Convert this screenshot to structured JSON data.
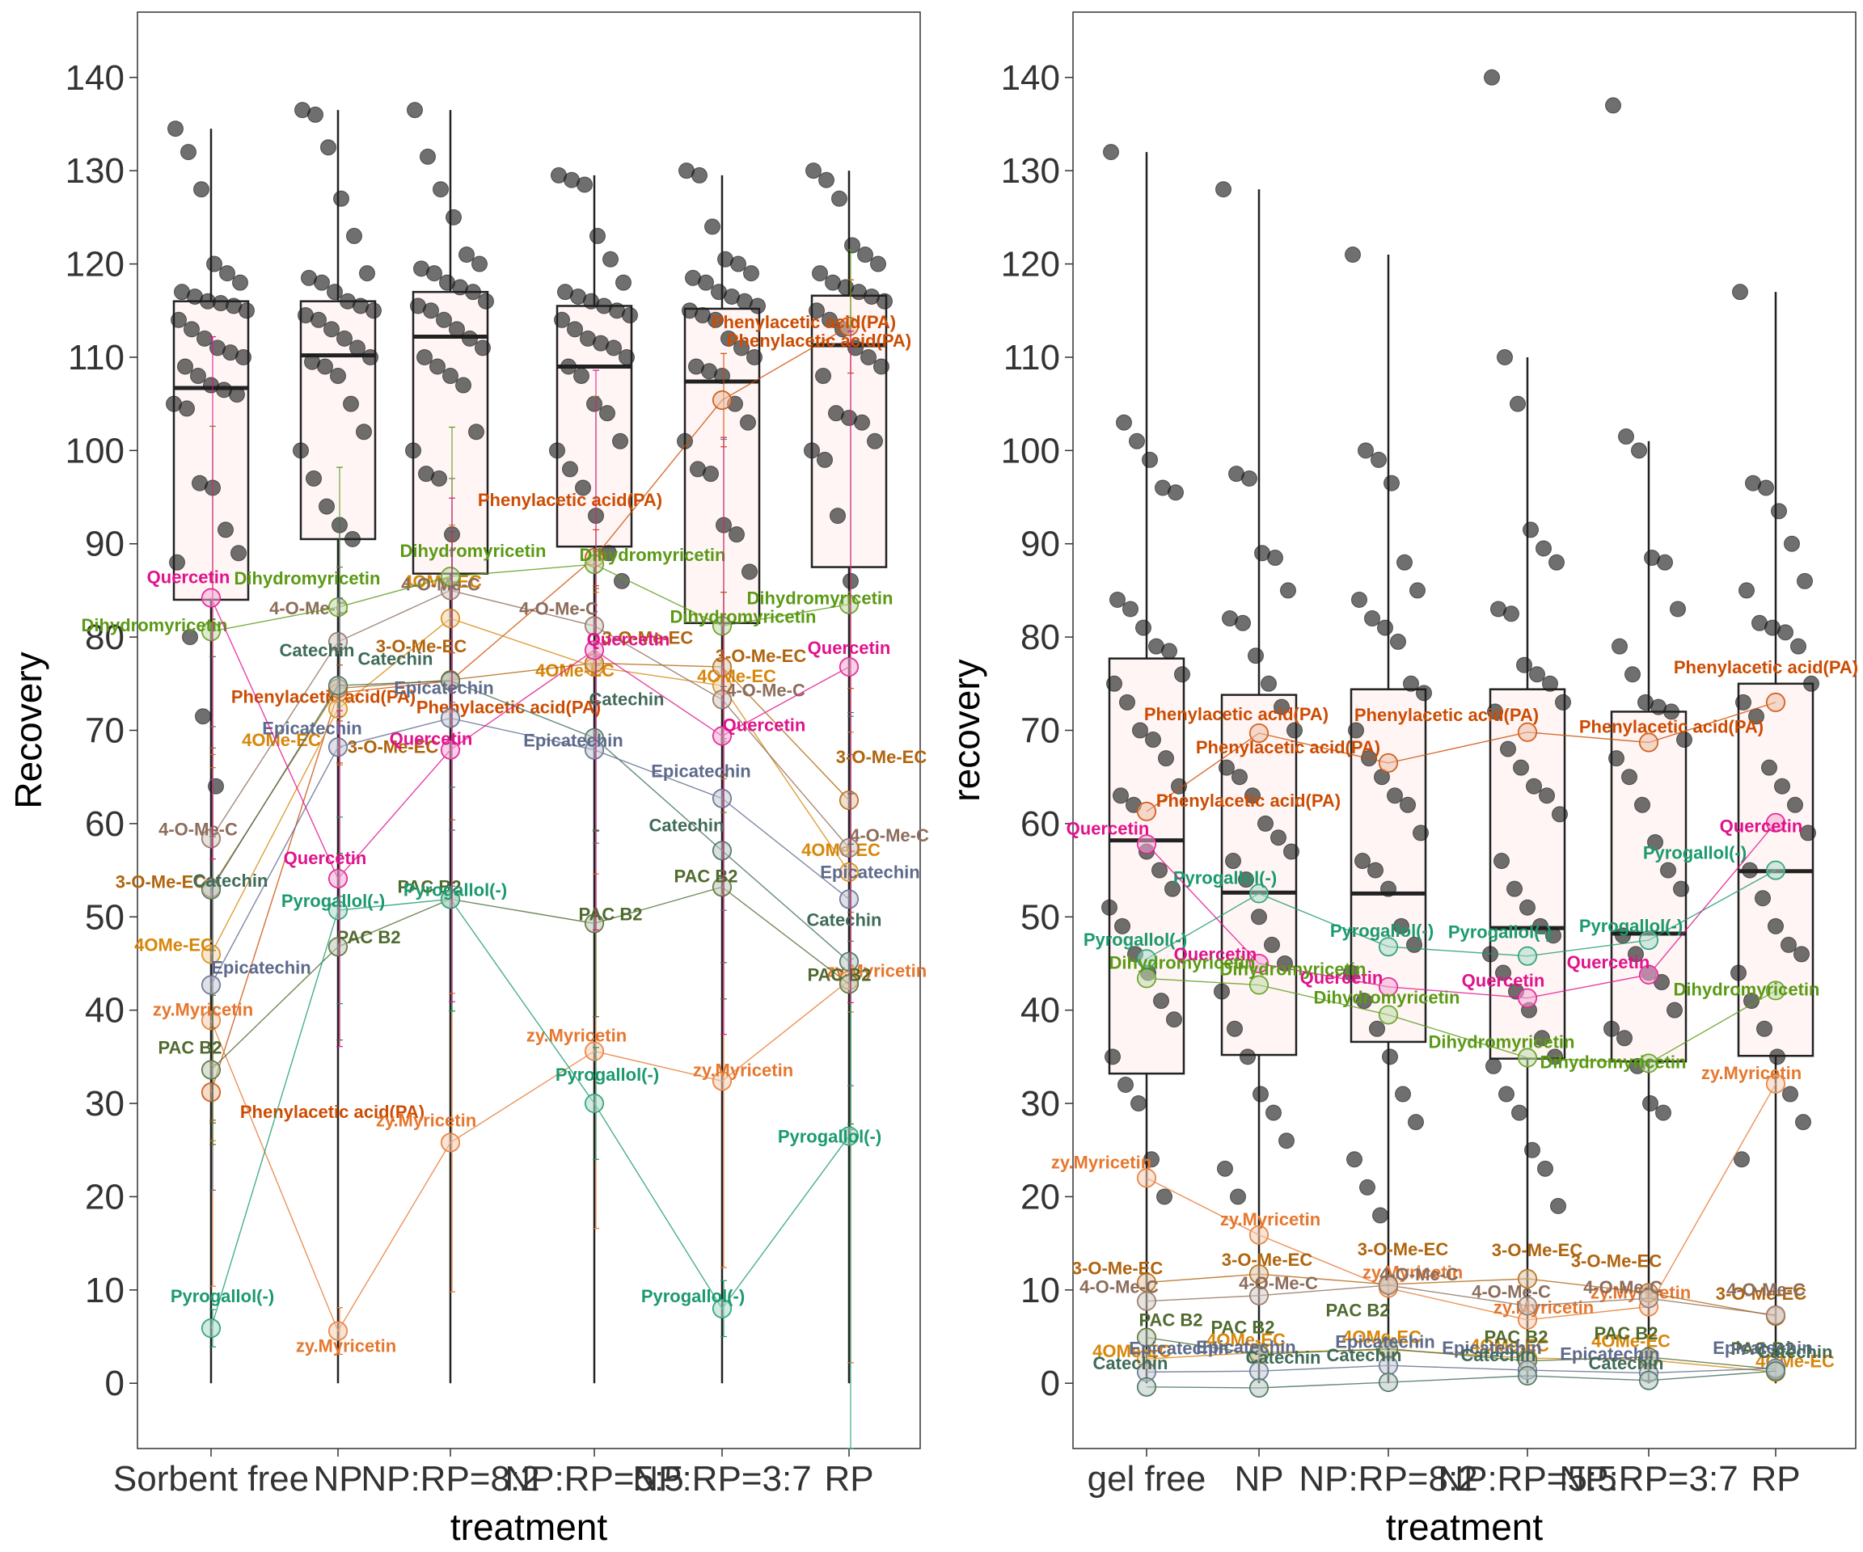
{
  "colors": {
    "Phenylacetic acid(PA)": "#cc4c02",
    "zy.Myricetin": "#e6772e",
    "4OMe-EC": "#d7870a",
    "3-O-Me-EC": "#b0640d",
    "4-O-Me-C": "#8c6d5c",
    "Dihydromyricetin": "#5a9a14",
    "Catechin": "#3f6b58",
    "Epicatechin": "#5e6a8c",
    "PAC B2": "#4f6b2e",
    "Pyrogallol(-)": "#1b9a6e",
    "Quercetin": "#e0138c",
    "box_fill": "#fff5f5",
    "raw_point": "#222222"
  },
  "chart_data": [
    {
      "type": "boxplot",
      "xlabel": "treatment",
      "ylabel": "Recovery",
      "ylim": [
        -7,
        147
      ],
      "yticks": [
        0,
        10,
        20,
        30,
        40,
        50,
        60,
        70,
        80,
        90,
        100,
        110,
        120,
        130,
        140
      ],
      "categories": [
        "Sorbent free",
        "NP",
        "NP:RP=8:2",
        "NP:RP=5:5",
        "NP:RP=3:7",
        "RP"
      ],
      "boxes": [
        {
          "q1": 84,
          "median": 106.7,
          "q3": 116,
          "lo": 0,
          "hi": 134.5
        },
        {
          "q1": 90.5,
          "median": 110.2,
          "q3": 116,
          "lo": 0,
          "hi": 136.5
        },
        {
          "q1": 86.8,
          "median": 112.2,
          "q3": 117,
          "lo": 0,
          "hi": 136.5
        },
        {
          "q1": 89.7,
          "median": 109,
          "q3": 115.5,
          "lo": 0,
          "hi": 129.5
        },
        {
          "q1": 81.5,
          "median": 107.4,
          "q3": 115.2,
          "lo": 0,
          "hi": 129.5
        },
        {
          "q1": 87.5,
          "median": 111.3,
          "q3": 116.6,
          "lo": 0,
          "hi": 130
        }
      ],
      "raw_points": [
        [
          134.5,
          132,
          128,
          120,
          119,
          118,
          117,
          116.5,
          116,
          115.8,
          115.5,
          115,
          114,
          113,
          112,
          111,
          110.5,
          110,
          109,
          108,
          107,
          106.5,
          106,
          105,
          104.5,
          96.5,
          96,
          91.5,
          89,
          88,
          80,
          71.5,
          64
        ],
        [
          136.5,
          136,
          132.5,
          127,
          123,
          119,
          118.5,
          118,
          117,
          116,
          115.5,
          115,
          114.5,
          114,
          113,
          112,
          111,
          110,
          109.5,
          109,
          108,
          105,
          102,
          100,
          97,
          94,
          92,
          90.5
        ],
        [
          136.5,
          131.5,
          128,
          125,
          121,
          120,
          119.5,
          119,
          118,
          117.5,
          117,
          116,
          115.5,
          115,
          114,
          113,
          112,
          111,
          110,
          109,
          108,
          107,
          102,
          100,
          97.5,
          97,
          91
        ],
        [
          129.5,
          129,
          128.5,
          123,
          120.5,
          118,
          117,
          116.5,
          116,
          115.5,
          115,
          114.5,
          114,
          113,
          112,
          111.5,
          111,
          110,
          109,
          108,
          105,
          104,
          101,
          100,
          98,
          96,
          93,
          89,
          86
        ],
        [
          130,
          129.5,
          124,
          120.5,
          120,
          119,
          118.5,
          118,
          117,
          116.5,
          116,
          115.5,
          115,
          114.5,
          114,
          112,
          111,
          110,
          109,
          108.5,
          108,
          105,
          103,
          101,
          98,
          97.5,
          92,
          91,
          87
        ],
        [
          130,
          129,
          127,
          122,
          121,
          120,
          119,
          118,
          117.5,
          117,
          116.5,
          116,
          115,
          114,
          113,
          111,
          110,
          109,
          108,
          104,
          103.5,
          103,
          101,
          100,
          99,
          93,
          86
        ]
      ],
      "series": [
        {
          "name": "Phenylacetic acid(PA)",
          "values": [
            31.2,
            74,
            75.3,
            88.5,
            105.4,
            113.3
          ],
          "err": [
            3,
            3,
            3,
            3,
            5,
            5
          ]
        },
        {
          "name": "zy.Myricetin",
          "values": [
            38.9,
            5.6,
            25.8,
            35.6,
            32.4,
            43.2
          ],
          "err": [
            28.5,
            2.5,
            16,
            19,
            20,
            41
          ]
        },
        {
          "name": "4OMe-EC",
          "values": [
            46,
            72.3,
            82,
            76.8,
            74.8,
            54.8
          ],
          "err": [
            20,
            6,
            10,
            8,
            10,
            15
          ]
        },
        {
          "name": "3-O-Me-EC",
          "values": [
            53.1,
            74.5,
            75.4,
            77.2,
            76.8,
            62.5
          ],
          "err": [
            15,
            8,
            15,
            8,
            8,
            12
          ]
        },
        {
          "name": "4-O-Me-C",
          "values": [
            58.4,
            79.5,
            85,
            81.2,
            73.3,
            57.4
          ],
          "err": [
            12,
            8,
            12,
            8,
            8,
            10
          ]
        },
        {
          "name": "Dihydromyricetin",
          "values": [
            80.6,
            83.2,
            86.5,
            87.8,
            81.2,
            83.5
          ],
          "err": [
            22,
            15,
            16,
            18,
            20,
            38
          ]
        },
        {
          "name": "Catechin",
          "values": [
            52.9,
            74.8,
            75.3,
            69.2,
            57.1,
            45.2
          ],
          "err": [
            25,
            18,
            16,
            10,
            12,
            18
          ]
        },
        {
          "name": "Epicatechin",
          "values": [
            42.7,
            68.2,
            71.3,
            67.9,
            62.7,
            51.9
          ],
          "err": [
            22,
            16,
            18,
            10,
            12,
            20
          ]
        },
        {
          "name": "PAC B2",
          "values": [
            33.6,
            46.8,
            51.9,
            49.3,
            53.2,
            42.8
          ],
          "err": [
            8,
            10,
            12,
            10,
            12,
            15
          ]
        },
        {
          "name": "Pyrogallol(-)",
          "values": [
            5.9,
            50.7,
            51.9,
            30,
            8,
            26.5
          ],
          "err": [
            2,
            10,
            12,
            6,
            3,
            45
          ]
        },
        {
          "name": "Quercetin",
          "values": [
            84.2,
            54.1,
            67.9,
            78.6,
            69.4,
            76.8
          ],
          "err": [
            28,
            18,
            27,
            30,
            32,
            36
          ]
        }
      ]
    },
    {
      "type": "boxplot",
      "xlabel": "treatment",
      "ylabel": "recovery",
      "ylim": [
        -7,
        147
      ],
      "yticks": [
        0,
        10,
        20,
        30,
        40,
        50,
        60,
        70,
        80,
        90,
        100,
        110,
        120,
        130,
        140
      ],
      "categories": [
        "gel free",
        "NP",
        "NP:RP=8:2",
        "NP:RP=5:5",
        "NP:RP=3:7",
        "RP"
      ],
      "boxes": [
        {
          "q1": 33.2,
          "median": 58.2,
          "q3": 77.7,
          "lo": 0,
          "hi": 132
        },
        {
          "q1": 35.2,
          "median": 52.6,
          "q3": 73.8,
          "lo": 0,
          "hi": 128
        },
        {
          "q1": 36.6,
          "median": 52.5,
          "q3": 74.4,
          "lo": 0,
          "hi": 121
        },
        {
          "q1": 34.8,
          "median": 48.8,
          "q3": 74.4,
          "lo": 0,
          "hi": 110
        },
        {
          "q1": 34.5,
          "median": 48.2,
          "q3": 72,
          "lo": 0,
          "hi": 101
        },
        {
          "q1": 35.1,
          "median": 54.9,
          "q3": 75,
          "lo": 0,
          "hi": 117
        }
      ],
      "raw_points": [
        [
          132,
          103,
          101,
          99,
          96,
          95.5,
          84,
          83,
          81,
          79,
          78.5,
          76,
          75,
          73,
          70,
          69,
          67,
          64,
          63,
          62,
          57,
          55,
          53,
          51,
          49,
          46,
          44,
          41,
          39,
          35,
          32,
          30,
          24,
          20
        ],
        [
          128,
          97.5,
          97,
          89,
          88.5,
          85,
          82,
          81.5,
          78,
          75,
          72.5,
          70,
          66,
          65,
          63,
          60,
          58.5,
          57,
          56,
          54,
          50,
          47,
          45,
          42,
          38,
          35,
          31,
          29,
          26,
          23,
          20
        ],
        [
          121,
          100,
          99,
          96.5,
          88,
          85,
          84,
          82,
          81,
          79.5,
          75,
          74,
          70,
          67,
          65,
          63,
          62,
          59,
          56,
          55,
          53,
          49,
          47,
          44,
          41,
          38,
          35,
          31,
          28,
          24,
          21,
          18
        ],
        [
          140,
          110,
          105,
          91.5,
          89.5,
          88,
          83,
          82.5,
          77,
          76,
          75,
          73,
          72,
          68,
          66,
          64,
          63,
          61,
          56,
          53,
          51,
          49,
          48,
          46,
          44,
          42,
          40,
          37,
          35,
          34,
          31,
          29,
          25,
          23,
          19
        ],
        [
          137,
          101.5,
          100,
          88.5,
          88,
          83,
          79,
          76,
          73,
          72.5,
          72,
          69,
          67,
          65,
          62,
          58,
          55,
          53,
          48,
          46,
          44,
          43,
          40,
          38,
          37,
          34,
          30,
          29
        ],
        [
          117,
          96.5,
          96,
          93.5,
          90,
          86,
          85,
          81.5,
          81,
          80.5,
          79,
          75,
          73,
          71.5,
          66,
          64,
          62,
          59,
          55,
          52,
          49,
          47,
          46,
          44,
          41,
          38,
          35,
          31,
          28,
          24
        ]
      ],
      "series": [
        {
          "name": "Phenylacetic acid(PA)",
          "values": [
            61.3,
            69.7,
            66.5,
            69.8,
            68.7,
            73
          ]
        },
        {
          "name": "Pyrogallol(-)",
          "values": [
            45.5,
            52.5,
            46.8,
            45.8,
            47.5,
            55
          ]
        },
        {
          "name": "Quercetin",
          "values": [
            57.8,
            45,
            42.5,
            41.3,
            43.8,
            60.1
          ]
        },
        {
          "name": "Dihydromyricetin",
          "values": [
            43.4,
            42.7,
            39.5,
            34.9,
            34.3,
            42.1
          ]
        },
        {
          "name": "zy.Myricetin",
          "values": [
            22,
            15.9,
            10.2,
            6.8,
            8.2,
            32.1
          ]
        },
        {
          "name": "3-O-Me-EC",
          "values": [
            10.8,
            11.7,
            10.6,
            11.2,
            9.7,
            7.2
          ]
        },
        {
          "name": "4-O-Me-C",
          "values": [
            8.8,
            9.4,
            10.5,
            8.3,
            9.1,
            7.3
          ]
        },
        {
          "name": "4OMe-EC",
          "values": [
            2.6,
            3.3,
            3.6,
            2.7,
            2.5,
            1.2
          ]
        },
        {
          "name": "PAC B2",
          "values": [
            4.9,
            3.1,
            3.7,
            2.4,
            2.8,
            1.5
          ]
        },
        {
          "name": "Epicatechin",
          "values": [
            1.2,
            1.3,
            1.9,
            1.4,
            1.1,
            1.6
          ]
        },
        {
          "name": "Catechin",
          "values": [
            -0.4,
            -0.5,
            0.1,
            0.8,
            0.3,
            1.3
          ]
        }
      ]
    }
  ]
}
